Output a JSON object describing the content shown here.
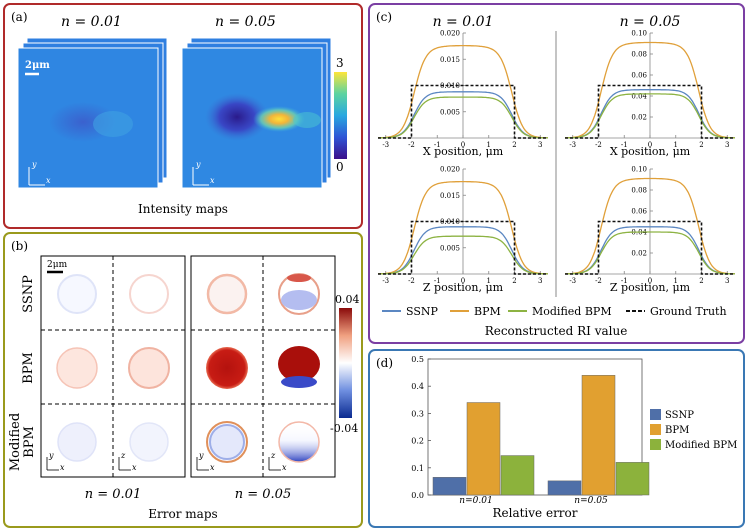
{
  "panel_a": {
    "label": "(a)",
    "n_labels": [
      "n = 0.01",
      "n = 0.05"
    ],
    "scale_bar": "2μm",
    "axis_y": "y",
    "axis_x": "x",
    "colorbar_max": "3",
    "colorbar_min": "0",
    "caption": "Intensity maps",
    "colors": {
      "border": "#b02a2a"
    }
  },
  "panel_b": {
    "label": "(b)",
    "scale_bar": "2μm",
    "row_labels": [
      "SSNP",
      "BPM",
      "Modified BPM"
    ],
    "modified_line1": "Modified",
    "modified_line2": "BPM",
    "col_labels": [
      "n = 0.01",
      "n = 0.05"
    ],
    "axis_y": "y",
    "axis_z": "z",
    "axis_x": "x",
    "colorbar_max": "0.04",
    "colorbar_min": "-0.04",
    "caption": "Error maps",
    "colors": {
      "border": "#9a9a1c"
    }
  },
  "panel_c": {
    "label": "(c)",
    "col_titles": [
      "n = 0.01",
      "n = 0.05"
    ],
    "xlabels": [
      "X position, μm",
      "X position, μm",
      "Z position, μm",
      "Z position, μm"
    ],
    "caption": "Reconstructed RI value",
    "legend": [
      "SSNP",
      "BPM",
      "Modified BPM",
      "Ground Truth"
    ],
    "colors": {
      "border": "#7b3fa3",
      "ssnp": "#5b87c2",
      "bpm": "#e0a03a",
      "mbpm": "#8db343",
      "gt": "#111111"
    }
  },
  "chart_data": [
    {
      "type": "line",
      "title": "n = 0.01 — X profile",
      "xlabel": "X position, μm",
      "xlim": [
        -3.3,
        3.3
      ],
      "ylim": [
        0,
        0.02
      ],
      "xticks": [
        "-3",
        "-2",
        "-1",
        "0",
        "1",
        "2",
        "3"
      ],
      "yticks": [
        "0.005",
        "0.010",
        "0.015",
        "0.020"
      ],
      "series": [
        {
          "name": "SSNP",
          "plateau": 0.0088
        },
        {
          "name": "BPM",
          "plateau": 0.0176
        },
        {
          "name": "Modified BPM",
          "plateau": 0.0078
        },
        {
          "name": "Ground Truth",
          "plateau": 0.01
        }
      ]
    },
    {
      "type": "line",
      "title": "n = 0.05 — X profile",
      "xlabel": "X position, μm",
      "xlim": [
        -3.3,
        3.3
      ],
      "ylim": [
        0,
        0.1
      ],
      "xticks": [
        "-3",
        "-2",
        "-1",
        "0",
        "1",
        "2",
        "3"
      ],
      "yticks": [
        "0.02",
        "0.04",
        "0.06",
        "0.08",
        "0.10"
      ],
      "series": [
        {
          "name": "SSNP",
          "plateau": 0.046
        },
        {
          "name": "BPM",
          "plateau": 0.091
        },
        {
          "name": "Modified BPM",
          "plateau": 0.042
        },
        {
          "name": "Ground Truth",
          "plateau": 0.05
        }
      ]
    },
    {
      "type": "line",
      "title": "n = 0.01 — Z profile",
      "xlabel": "Z position, μm",
      "xlim": [
        -3.3,
        3.3
      ],
      "ylim": [
        0,
        0.02
      ],
      "xticks": [
        "-3",
        "-2",
        "-1",
        "0",
        "1",
        "2",
        "3"
      ],
      "yticks": [
        "0.005",
        "0.010",
        "0.015",
        "0.020"
      ],
      "series": [
        {
          "name": "SSNP",
          "plateau": 0.009
        },
        {
          "name": "BPM",
          "plateau": 0.0176
        },
        {
          "name": "Modified BPM",
          "plateau": 0.0072
        },
        {
          "name": "Ground Truth",
          "plateau": 0.01
        }
      ]
    },
    {
      "type": "line",
      "title": "n = 0.05 — Z profile",
      "xlabel": "Z position, μm",
      "xlim": [
        -3.3,
        3.3
      ],
      "ylim": [
        0,
        0.1
      ],
      "xticks": [
        "-3",
        "-2",
        "-1",
        "0",
        "1",
        "2",
        "3"
      ],
      "yticks": [
        "0.02",
        "0.04",
        "0.06",
        "0.08",
        "0.10"
      ],
      "series": [
        {
          "name": "SSNP",
          "plateau": 0.045
        },
        {
          "name": "BPM",
          "plateau": 0.091
        },
        {
          "name": "Modified BPM",
          "plateau": 0.04
        },
        {
          "name": "Ground Truth",
          "plateau": 0.05
        }
      ]
    },
    {
      "type": "bar",
      "title": "Relative error",
      "categories": [
        "n=0.01",
        "n=0.05"
      ],
      "ylim": [
        0,
        0.5
      ],
      "yticks": [
        "0.0",
        "0.1",
        "0.2",
        "0.3",
        "0.4",
        "0.5"
      ],
      "series": [
        {
          "name": "SSNP",
          "values": [
            0.065,
            0.052
          ]
        },
        {
          "name": "BPM",
          "values": [
            0.34,
            0.44
          ]
        },
        {
          "name": "Modified BPM",
          "values": [
            0.145,
            0.12
          ]
        }
      ]
    }
  ],
  "panel_d": {
    "label": "(d)",
    "caption": "Relative error",
    "cat_labels": [
      "n=0.01",
      "n=0.05"
    ],
    "legend": [
      "SSNP",
      "BPM",
      "Modified BPM"
    ],
    "colors": {
      "border": "#3a78b4",
      "ssnp": "#4f6fa8",
      "bpm": "#e1a030",
      "mbpm": "#8cb23c"
    }
  }
}
